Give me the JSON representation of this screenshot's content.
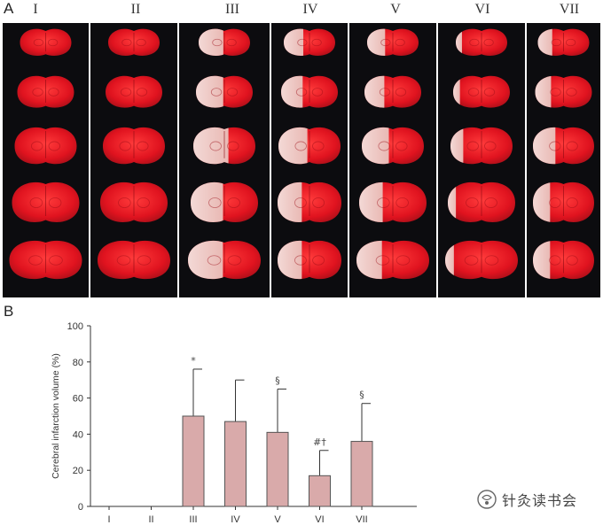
{
  "panel_a": {
    "label": "A",
    "groups": [
      "I",
      "II",
      "III",
      "IV",
      "V",
      "VI",
      "VII"
    ]
  },
  "panel_b": {
    "label": "B"
  },
  "chart_data": {
    "type": "bar",
    "categories": [
      "I",
      "II",
      "III",
      "IV",
      "V",
      "VI",
      "VII"
    ],
    "values": [
      0,
      0,
      50,
      47,
      41,
      17,
      36
    ],
    "error_upper": [
      0,
      0,
      76,
      70,
      65,
      31,
      57
    ],
    "annotations": [
      "",
      "",
      "*",
      "",
      "§",
      "#†",
      "§"
    ],
    "title": "",
    "xlabel": "",
    "ylabel": "Cerebral infarction volume (%)",
    "ylim": [
      0,
      100
    ],
    "yticks": [
      0,
      20,
      40,
      60,
      80,
      100
    ],
    "grid": false,
    "bar_color": "#d9aaaa",
    "bar_edge_color": "#555555"
  },
  "watermark": {
    "text": "针灸读书会"
  },
  "colors": {
    "photo_background": "#0c0c0f",
    "tissue_red": "#e0131f",
    "infarct_pale": "#f3d9d6"
  }
}
